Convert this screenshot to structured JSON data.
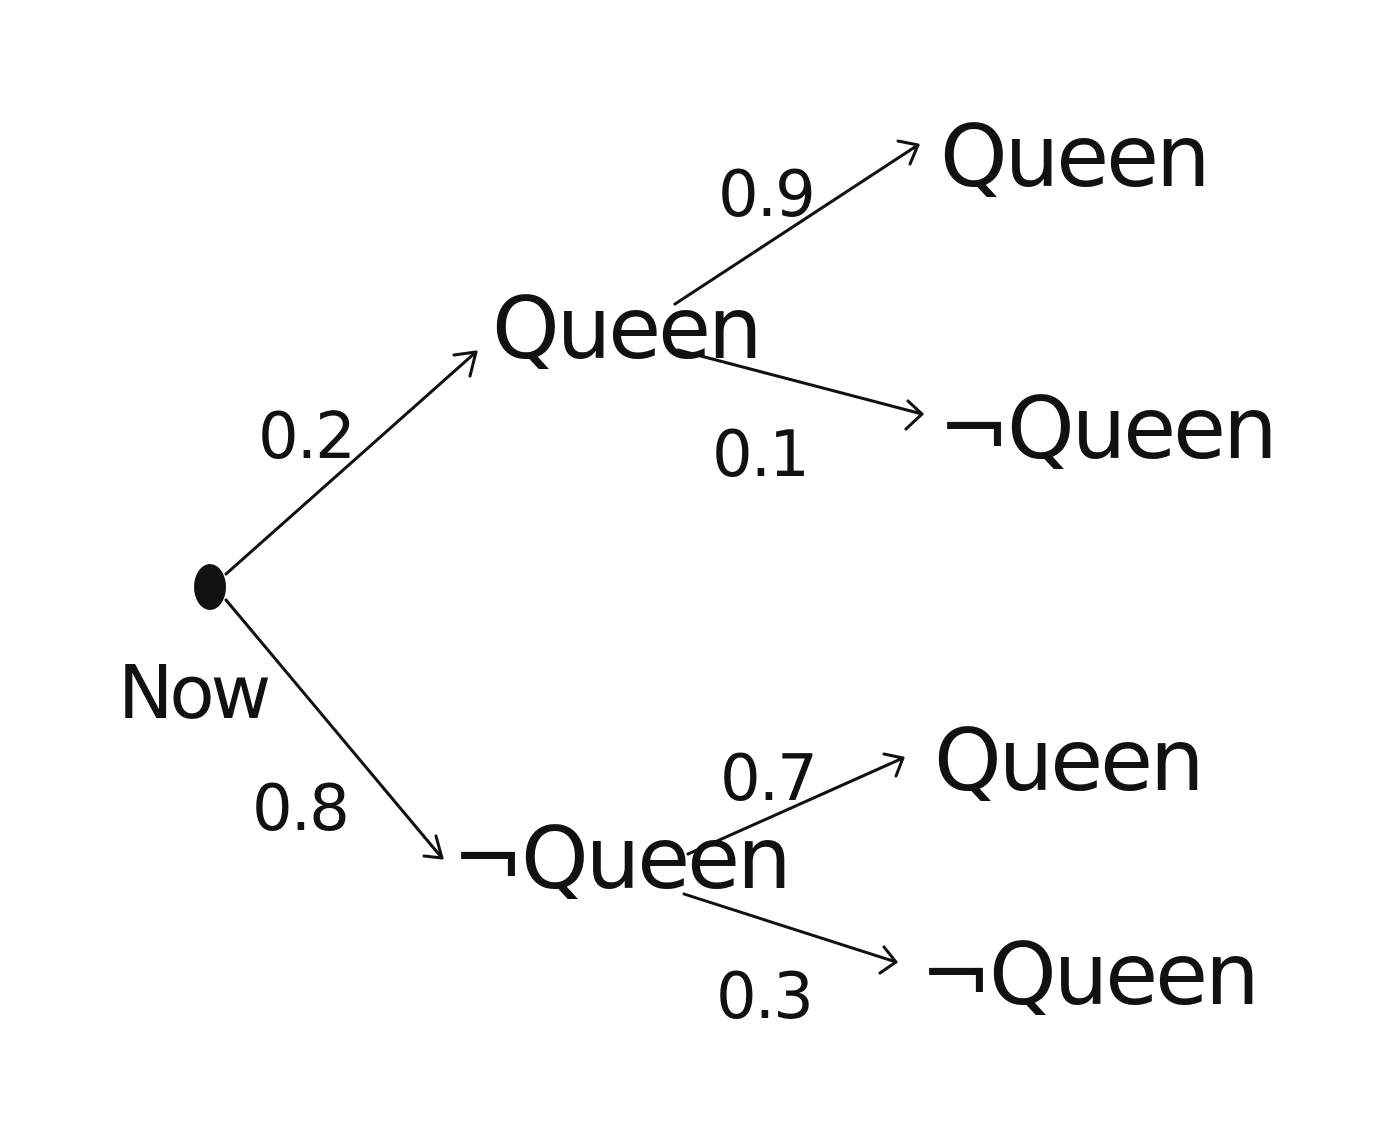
{
  "root": {
    "label": "Now"
  },
  "level1": [
    {
      "label": "Queen",
      "probability": "0.2"
    },
    {
      "label": "¬Queen",
      "probability": "0.8"
    }
  ],
  "level2": [
    {
      "parent": 0,
      "label": "Queen",
      "probability": "0.9"
    },
    {
      "parent": 0,
      "label": "¬Queen",
      "probability": "0.1"
    },
    {
      "parent": 1,
      "label": "Queen",
      "probability": "0.7"
    },
    {
      "parent": 1,
      "label": "¬Queen",
      "probability": "0.3"
    }
  ],
  "colors": {
    "ink": "#111111",
    "background": "#ffffff"
  }
}
